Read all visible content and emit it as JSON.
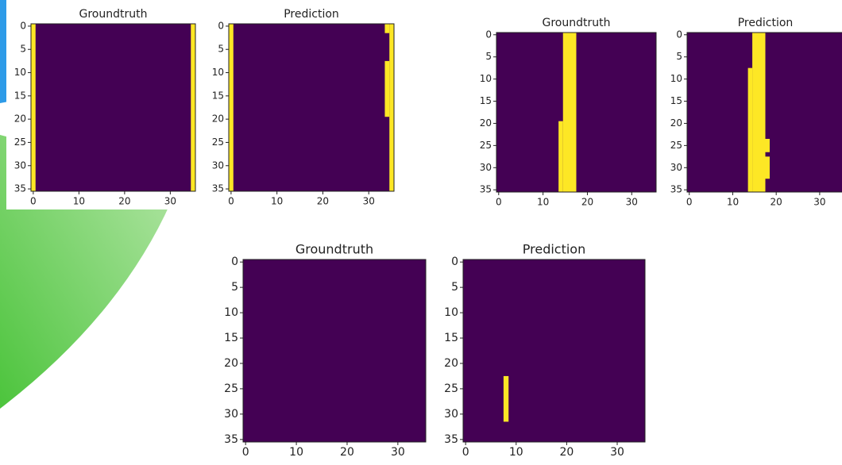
{
  "chart_data": [
    {
      "type": "heatmap",
      "title": "Groundtruth",
      "xlim": [
        -0.5,
        35.5
      ],
      "ylim": [
        35.5,
        -0.5
      ],
      "xticks": [
        0,
        10,
        20,
        30
      ],
      "yticks": [
        0,
        5,
        10,
        15,
        20,
        25,
        30,
        35
      ],
      "color": "#440154",
      "highlight_color": "#fde725",
      "cells": [
        {
          "x": [
            0,
            0
          ],
          "y": [
            0,
            35
          ]
        },
        {
          "x": [
            35,
            35
          ],
          "y": [
            0,
            35
          ]
        }
      ]
    },
    {
      "type": "heatmap",
      "title": "Prediction",
      "xlim": [
        -0.5,
        35.5
      ],
      "ylim": [
        35.5,
        -0.5
      ],
      "xticks": [
        0,
        10,
        20,
        30
      ],
      "yticks": [
        0,
        5,
        10,
        15,
        20,
        25,
        30,
        35
      ],
      "color": "#440154",
      "highlight_color": "#fde725",
      "cells": [
        {
          "x": [
            0,
            0
          ],
          "y": [
            0,
            35
          ]
        },
        {
          "x": [
            35,
            35
          ],
          "y": [
            0,
            35
          ]
        },
        {
          "x": [
            34,
            34
          ],
          "y": [
            0,
            1
          ]
        },
        {
          "x": [
            34,
            34
          ],
          "y": [
            8,
            19
          ]
        }
      ]
    },
    {
      "type": "heatmap",
      "title": "Groundtruth",
      "xlim": [
        -0.5,
        35.5
      ],
      "ylim": [
        35.5,
        -0.5
      ],
      "xticks": [
        0,
        10,
        20,
        30
      ],
      "yticks": [
        0,
        5,
        10,
        15,
        20,
        25,
        30,
        35
      ],
      "color": "#440154",
      "highlight_color": "#fde725",
      "cells": [
        {
          "x": [
            15,
            17
          ],
          "y": [
            0,
            35
          ]
        },
        {
          "x": [
            14,
            14
          ],
          "y": [
            20,
            35
          ]
        }
      ]
    },
    {
      "type": "heatmap",
      "title": "Prediction",
      "xlim": [
        -0.5,
        35.5
      ],
      "ylim": [
        35.5,
        -0.5
      ],
      "xticks": [
        0,
        10,
        20,
        30
      ],
      "yticks": [
        0,
        5,
        10,
        15,
        20,
        25,
        30,
        35
      ],
      "color": "#440154",
      "highlight_color": "#fde725",
      "cells": [
        {
          "x": [
            15,
            17
          ],
          "y": [
            0,
            35
          ]
        },
        {
          "x": [
            14,
            14
          ],
          "y": [
            8,
            35
          ]
        },
        {
          "x": [
            18,
            18
          ],
          "y": [
            24,
            26
          ]
        },
        {
          "x": [
            18,
            18
          ],
          "y": [
            28,
            32
          ]
        }
      ]
    },
    {
      "type": "heatmap",
      "title": "Groundtruth",
      "xlim": [
        -0.5,
        35.5
      ],
      "ylim": [
        35.5,
        -0.5
      ],
      "xticks": [
        0,
        10,
        20,
        30
      ],
      "yticks": [
        0,
        5,
        10,
        15,
        20,
        25,
        30,
        35
      ],
      "color": "#440154",
      "highlight_color": "#fde725",
      "cells": []
    },
    {
      "type": "heatmap",
      "title": "Prediction",
      "xlim": [
        -0.5,
        35.5
      ],
      "ylim": [
        35.5,
        -0.5
      ],
      "xticks": [
        0,
        10,
        20,
        30
      ],
      "yticks": [
        0,
        5,
        10,
        15,
        20,
        25,
        30,
        35
      ],
      "color": "#440154",
      "highlight_color": "#fde725",
      "cells": [
        {
          "x": [
            8,
            8
          ],
          "y": [
            23,
            31
          ]
        }
      ]
    }
  ]
}
